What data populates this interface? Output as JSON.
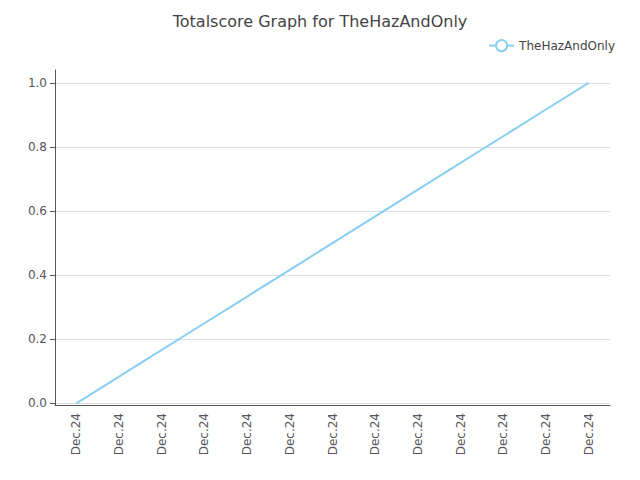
{
  "chart_data": {
    "type": "line",
    "title": "Totalscore Graph for TheHazAndOnly",
    "categories": [
      "Dec.24",
      "Dec.24",
      "Dec.24",
      "Dec.24",
      "Dec.24",
      "Dec.24",
      "Dec.24",
      "Dec.24",
      "Dec.24",
      "Dec.24",
      "Dec.24",
      "Dec.24",
      "Dec.24"
    ],
    "series": [
      {
        "name": "TheHazAndOnly",
        "color": "#89CFF0",
        "values": [
          0.0,
          0.0833,
          0.1667,
          0.25,
          0.3333,
          0.4167,
          0.5,
          0.5833,
          0.6667,
          0.75,
          0.8333,
          0.9167,
          1.0
        ]
      }
    ],
    "ylim": [
      -0.005,
      1.04
    ],
    "yticks": [
      {
        "value": 0,
        "label": "0.0"
      },
      0.2,
      0.4,
      0.6,
      0.8,
      {
        "value": 1,
        "label": "1.0"
      }
    ],
    "grid": true,
    "legend": "upper right"
  }
}
